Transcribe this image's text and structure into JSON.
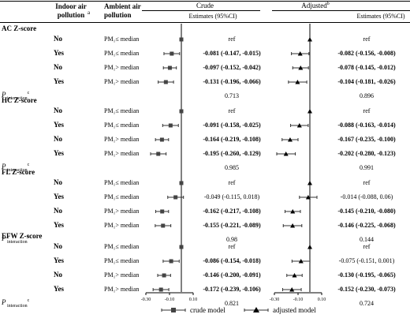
{
  "header": {
    "col_indoor": "Indoor air pollution",
    "col_indoor_sup": "a",
    "col_ambient": "Ambient air pollution",
    "crude_title": "Crude",
    "adjusted_title": "Adjusted",
    "adjusted_sup": "b",
    "estimates_label": "Estimates (95%CI)"
  },
  "p_label": "P",
  "p_sub": "interaction",
  "p_sup": "c",
  "sections": [
    {
      "title": "AC Z-score",
      "rows": [
        {
          "indoor": "No",
          "ambient": "PM₁≤ median",
          "crude": "ref",
          "adjusted": "ref",
          "crude_bold": false,
          "adj_bold": false
        },
        {
          "indoor": "Yes",
          "ambient": "PM₁≤ median",
          "crude": "-0.081 (-0.147, -0.015)",
          "adjusted": "-0.082 (-0.156, -0.008)",
          "crude_bold": true,
          "adj_bold": true
        },
        {
          "indoor": "No",
          "ambient": "PM₁> median",
          "crude": "-0.097 (-0.152, -0.042)",
          "adjusted": "-0.078 (-0.145, -0.012)",
          "crude_bold": true,
          "adj_bold": true
        },
        {
          "indoor": "Yes",
          "ambient": "PM₁> median",
          "crude": "-0.131 (-0.196, -0.066)",
          "adjusted": "-0.104 (-0.181, -0.026)",
          "crude_bold": true,
          "adj_bold": true
        }
      ],
      "p_crude": "0.713",
      "p_adjusted": "0.896"
    },
    {
      "title": "HC Z-score",
      "rows": [
        {
          "indoor": "No",
          "ambient": "PM₁≤ median",
          "crude": "ref",
          "adjusted": "ref",
          "crude_bold": false,
          "adj_bold": false
        },
        {
          "indoor": "Yes",
          "ambient": "PM₁≤ median",
          "crude": "-0.091 (-0.158, -0.025)",
          "adjusted": "-0.088 (-0.163, -0.014)",
          "crude_bold": true,
          "adj_bold": true
        },
        {
          "indoor": "No",
          "ambient": "PM₁> median",
          "crude": "-0.164 (-0.219, -0.108)",
          "adjusted": "-0.167 (-0.235, -0.100)",
          "crude_bold": true,
          "adj_bold": true
        },
        {
          "indoor": "Yes",
          "ambient": "PM₁> median",
          "crude": "-0.195 (-0.260, -0.129)",
          "adjusted": "-0.202 (-0.280, -0.123)",
          "crude_bold": true,
          "adj_bold": true
        }
      ],
      "p_crude": "0.985",
      "p_adjusted": "0.991"
    },
    {
      "title": "FL Z-score",
      "rows": [
        {
          "indoor": "No",
          "ambient": "PM₁≤ median",
          "crude": "ref",
          "adjusted": "ref",
          "crude_bold": false,
          "adj_bold": false
        },
        {
          "indoor": "Yes",
          "ambient": "PM₁≤ median",
          "crude": "-0.049 (-0.115, 0.018)",
          "adjusted": "-0.014 (-0.088, 0.06)",
          "crude_bold": false,
          "adj_bold": false
        },
        {
          "indoor": "No",
          "ambient": "PM₁> median",
          "crude": "-0.162 (-0.217, -0.108)",
          "adjusted": "-0.145 (-0.210, -0.080)",
          "crude_bold": true,
          "adj_bold": true
        },
        {
          "indoor": "Yes",
          "ambient": "PM₁> median",
          "crude": "-0.155 (-0.221, -0.089)",
          "adjusted": "-0.146 (-0.225, -0.068)",
          "crude_bold": true,
          "adj_bold": true
        }
      ],
      "p_crude": "0.98",
      "p_adjusted": "0.144"
    },
    {
      "title": "EFW Z-score",
      "rows": [
        {
          "indoor": "No",
          "ambient": "PM₁≤ median",
          "crude": "ref",
          "adjusted": "ref",
          "crude_bold": false,
          "adj_bold": false
        },
        {
          "indoor": "Yes",
          "ambient": "PM₁≤ median",
          "crude": "-0.086 (-0.154, -0.018)",
          "adjusted": "-0.075 (-0.151, 0.001)",
          "crude_bold": true,
          "adj_bold": false
        },
        {
          "indoor": "No",
          "ambient": "PM₁> median",
          "crude": "-0.146 (-0.200, -0.091)",
          "adjusted": "-0.130 (-0.195, -0.065)",
          "crude_bold": true,
          "adj_bold": true
        },
        {
          "indoor": "Yes",
          "ambient": "PM₁> median",
          "crude": "-0.172 (-0.239, -0.106)",
          "adjusted": "-0.152 (-0.230, -0.073)",
          "crude_bold": true,
          "adj_bold": true
        }
      ],
      "p_crude": "0.821",
      "p_adjusted": "0.724"
    }
  ],
  "axis": {
    "crude_ticks": [
      "-0.30",
      "-0.10",
      "0.10"
    ],
    "adjusted_ticks": [
      "-0.30",
      "-0.10",
      "0.10"
    ]
  },
  "legend": {
    "crude": "crude model",
    "adjusted": "adjusted model"
  },
  "chart_data": {
    "type": "scatter",
    "title": "",
    "xlim": [
      -0.3,
      0.1
    ],
    "reference_line": 0,
    "series": [
      {
        "name": "crude model",
        "marker": "square",
        "points": [
          {
            "outcome": "AC Z-score",
            "group": "No, PM1<=median",
            "est": 0,
            "lo": 0,
            "hi": 0
          },
          {
            "outcome": "AC Z-score",
            "group": "Yes, PM1<=median",
            "est": -0.081,
            "lo": -0.147,
            "hi": -0.015
          },
          {
            "outcome": "AC Z-score",
            "group": "No, PM1>median",
            "est": -0.097,
            "lo": -0.152,
            "hi": -0.042
          },
          {
            "outcome": "AC Z-score",
            "group": "Yes, PM1>median",
            "est": -0.131,
            "lo": -0.196,
            "hi": -0.066
          },
          {
            "outcome": "HC Z-score",
            "group": "No, PM1<=median",
            "est": 0,
            "lo": 0,
            "hi": 0
          },
          {
            "outcome": "HC Z-score",
            "group": "Yes, PM1<=median",
            "est": -0.091,
            "lo": -0.158,
            "hi": -0.025
          },
          {
            "outcome": "HC Z-score",
            "group": "No, PM1>median",
            "est": -0.164,
            "lo": -0.219,
            "hi": -0.108
          },
          {
            "outcome": "HC Z-score",
            "group": "Yes, PM1>median",
            "est": -0.195,
            "lo": -0.26,
            "hi": -0.129
          },
          {
            "outcome": "FL Z-score",
            "group": "No, PM1<=median",
            "est": 0,
            "lo": 0,
            "hi": 0
          },
          {
            "outcome": "FL Z-score",
            "group": "Yes, PM1<=median",
            "est": -0.049,
            "lo": -0.115,
            "hi": 0.018
          },
          {
            "outcome": "FL Z-score",
            "group": "No, PM1>median",
            "est": -0.162,
            "lo": -0.217,
            "hi": -0.108
          },
          {
            "outcome": "FL Z-score",
            "group": "Yes, PM1>median",
            "est": -0.155,
            "lo": -0.221,
            "hi": -0.089
          },
          {
            "outcome": "EFW Z-score",
            "group": "No, PM1<=median",
            "est": 0,
            "lo": 0,
            "hi": 0
          },
          {
            "outcome": "EFW Z-score",
            "group": "Yes, PM1<=median",
            "est": -0.086,
            "lo": -0.154,
            "hi": -0.018
          },
          {
            "outcome": "EFW Z-score",
            "group": "No, PM1>median",
            "est": -0.146,
            "lo": -0.2,
            "hi": -0.091
          },
          {
            "outcome": "EFW Z-score",
            "group": "Yes, PM1>median",
            "est": -0.172,
            "lo": -0.239,
            "hi": -0.106
          }
        ]
      },
      {
        "name": "adjusted model",
        "marker": "triangle",
        "points": [
          {
            "outcome": "AC Z-score",
            "group": "No, PM1<=median",
            "est": 0,
            "lo": 0,
            "hi": 0
          },
          {
            "outcome": "AC Z-score",
            "group": "Yes, PM1<=median",
            "est": -0.082,
            "lo": -0.156,
            "hi": -0.008
          },
          {
            "outcome": "AC Z-score",
            "group": "No, PM1>median",
            "est": -0.078,
            "lo": -0.145,
            "hi": -0.012
          },
          {
            "outcome": "AC Z-score",
            "group": "Yes, PM1>median",
            "est": -0.104,
            "lo": -0.181,
            "hi": -0.026
          },
          {
            "outcome": "HC Z-score",
            "group": "No, PM1<=median",
            "est": 0,
            "lo": 0,
            "hi": 0
          },
          {
            "outcome": "HC Z-score",
            "group": "Yes, PM1<=median",
            "est": -0.088,
            "lo": -0.163,
            "hi": -0.014
          },
          {
            "outcome": "HC Z-score",
            "group": "No, PM1>median",
            "est": -0.167,
            "lo": -0.235,
            "hi": -0.1
          },
          {
            "outcome": "HC Z-score",
            "group": "Yes, PM1>median",
            "est": -0.202,
            "lo": -0.28,
            "hi": -0.123
          },
          {
            "outcome": "FL Z-score",
            "group": "No, PM1<=median",
            "est": 0,
            "lo": 0,
            "hi": 0
          },
          {
            "outcome": "FL Z-score",
            "group": "Yes, PM1<=median",
            "est": -0.014,
            "lo": -0.088,
            "hi": 0.06
          },
          {
            "outcome": "FL Z-score",
            "group": "No, PM1>median",
            "est": -0.145,
            "lo": -0.21,
            "hi": -0.08
          },
          {
            "outcome": "FL Z-score",
            "group": "Yes, PM1>median",
            "est": -0.146,
            "lo": -0.225,
            "hi": -0.068
          },
          {
            "outcome": "EFW Z-score",
            "group": "No, PM1<=median",
            "est": 0,
            "lo": 0,
            "hi": 0
          },
          {
            "outcome": "EFW Z-score",
            "group": "Yes, PM1<=median",
            "est": -0.075,
            "lo": -0.151,
            "hi": 0.001
          },
          {
            "outcome": "EFW Z-score",
            "group": "No, PM1>median",
            "est": -0.13,
            "lo": -0.195,
            "hi": -0.065
          },
          {
            "outcome": "EFW Z-score",
            "group": "Yes, PM1>median",
            "est": -0.152,
            "lo": -0.23,
            "hi": -0.073
          }
        ]
      }
    ]
  }
}
